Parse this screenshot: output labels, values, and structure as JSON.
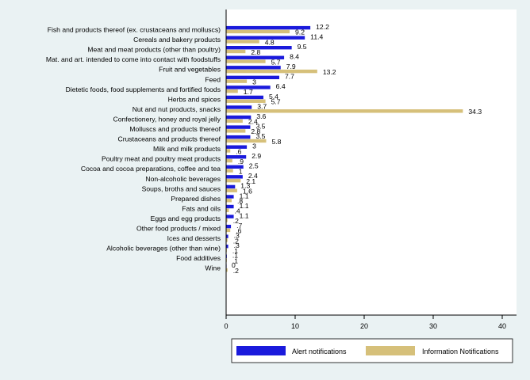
{
  "chart_data": {
    "type": "bar",
    "orientation": "horizontal",
    "categories": [
      "Fish and products thereof (ex. crustaceans and molluscs)",
      "Cereals and bakery products",
      "Meat and meat products (other than poultry)",
      "Mat. and art. intended to come into contact with foodstuffs",
      "Fruit and vegetables",
      "Feed",
      "Dietetic foods, food supplements and fortified foods",
      "Herbs and spices",
      "Nut and nut products, snacks",
      "Confectionery, honey and royal jelly",
      "Molluscs and products thereof",
      "Crustaceans and products thereof",
      "Milk and milk products",
      "Poultry meat and poultry meat products",
      "Cocoa and cocoa preparations, coffee and tea",
      "Non-alcoholic beverages",
      "Soups, broths and sauces",
      "Prepared dishes",
      "Fats and oils",
      "Eggs and egg products",
      "Other food products / mixed",
      "Ices and desserts",
      "Alcoholic beverages (other than wine)",
      "Food additives",
      "Wine"
    ],
    "series": [
      {
        "name": "Alert notifications",
        "color": "#1a1adc",
        "values": [
          12.2,
          11.4,
          9.5,
          8.4,
          7.9,
          7.7,
          6.4,
          5.4,
          3.7,
          3.6,
          3.5,
          3.5,
          3,
          2.9,
          2.5,
          2.4,
          1.3,
          1.1,
          1.1,
          1.1,
          0.7,
          0.3,
          0.3,
          0.1,
          0
        ],
        "labels": [
          "12.2",
          "11.4",
          "9.5",
          "8.4",
          "7.9",
          "7.7",
          "6.4",
          "5.4",
          "3.7",
          "3.6",
          "3.5",
          "3.5",
          "3",
          "2.9",
          "2.5",
          "2.4",
          "1.3",
          "1.1",
          "1.1",
          "1.1",
          ".7",
          ".3",
          ".3",
          ".1",
          "0"
        ]
      },
      {
        "name": "Information Notifications",
        "color": "#d6c07a",
        "values": [
          9.2,
          4.8,
          2.8,
          5.7,
          13.2,
          3,
          1.7,
          5.7,
          34.3,
          2.4,
          2.8,
          5.8,
          0.6,
          0.9,
          1,
          2.1,
          1.6,
          0.8,
          0.4,
          0.2,
          0.6,
          0.2,
          0.1,
          0.1,
          0.2
        ],
        "labels": [
          "9.2",
          "4.8",
          "2.8",
          "5.7",
          "13.2",
          "3",
          "1.7",
          "5.7",
          "34.3",
          "2.4",
          "2.8",
          "5.8",
          ".6",
          ".9",
          "1",
          "2.1",
          "1.6",
          ".8",
          ".4",
          ".2",
          ".6",
          ".2",
          ".1",
          ".1",
          ".2"
        ]
      }
    ],
    "xlim": [
      0,
      42
    ],
    "xticks": [
      0,
      10,
      20,
      30,
      40
    ],
    "grid": false,
    "legend_position": "bottom"
  }
}
